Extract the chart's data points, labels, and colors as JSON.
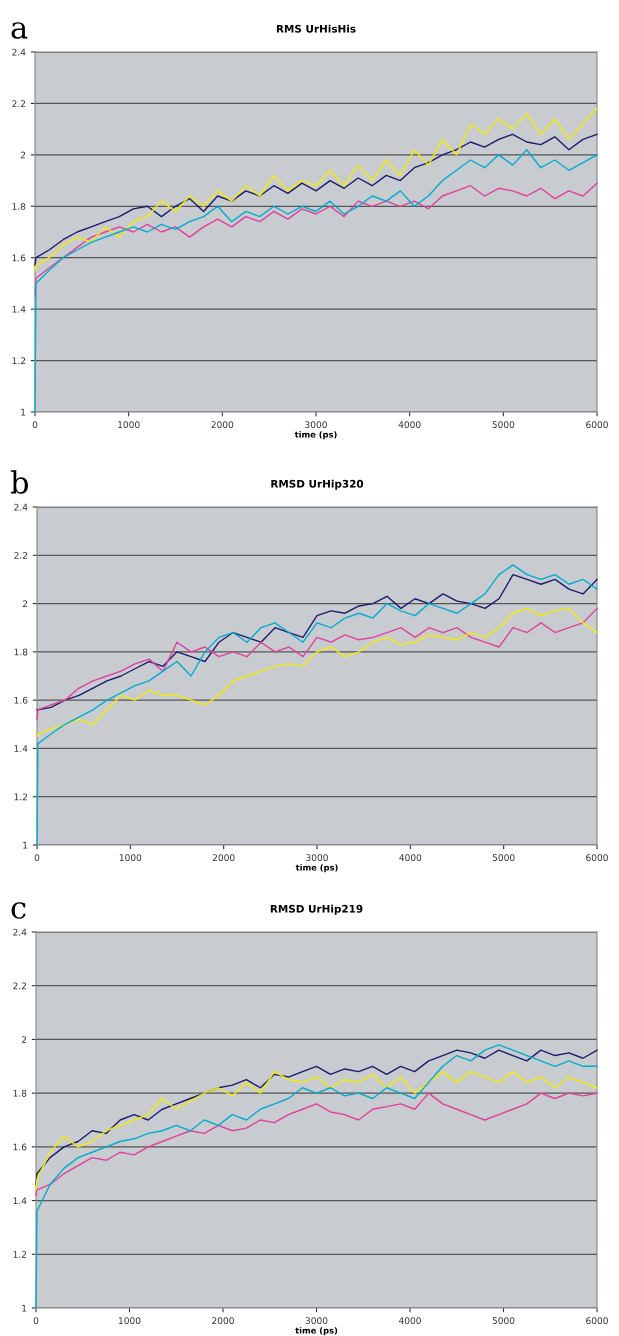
{
  "chart_data": [
    {
      "type": "line",
      "title": "RMS UrHisHis",
      "xlabel": "time (ps)",
      "annotations": [
        "a"
      ],
      "grid": "y",
      "xlim": [
        0,
        6000
      ],
      "xticks": [
        0,
        1000,
        2000,
        3000,
        4000,
        5000,
        6000
      ],
      "ylim": [
        1,
        2.4
      ],
      "yticks": [
        1,
        1.2,
        1.4,
        1.6,
        1.8,
        2,
        2.2,
        2.4
      ],
      "x": [
        0,
        10,
        150,
        300,
        450,
        600,
        750,
        900,
        1050,
        1200,
        1350,
        1500,
        1650,
        1800,
        1950,
        2100,
        2250,
        2400,
        2550,
        2700,
        2850,
        3000,
        3150,
        3300,
        3450,
        3600,
        3750,
        3900,
        4050,
        4200,
        4350,
        4500,
        4650,
        4800,
        4950,
        5100,
        5250,
        5400,
        5550,
        5700,
        5850,
        6000
      ],
      "series": [
        {
          "color": "#1c1c6c",
          "values": [
            1.57,
            1.6,
            1.63,
            1.67,
            1.7,
            1.72,
            1.74,
            1.76,
            1.79,
            1.8,
            1.76,
            1.8,
            1.83,
            1.78,
            1.84,
            1.82,
            1.86,
            1.84,
            1.88,
            1.85,
            1.89,
            1.86,
            1.9,
            1.87,
            1.91,
            1.88,
            1.92,
            1.9,
            1.95,
            1.97,
            2.0,
            2.02,
            2.05,
            2.03,
            2.06,
            2.08,
            2.05,
            2.04,
            2.07,
            2.02,
            2.06,
            2.08
          ]
        },
        {
          "color": "#e0409c",
          "values": [
            1.45,
            1.52,
            1.56,
            1.6,
            1.64,
            1.68,
            1.7,
            1.72,
            1.7,
            1.73,
            1.7,
            1.72,
            1.68,
            1.72,
            1.75,
            1.72,
            1.76,
            1.74,
            1.78,
            1.75,
            1.79,
            1.77,
            1.8,
            1.76,
            1.82,
            1.8,
            1.82,
            1.8,
            1.82,
            1.79,
            1.84,
            1.86,
            1.88,
            1.84,
            1.87,
            1.86,
            1.84,
            1.87,
            1.83,
            1.86,
            1.84,
            1.89
          ]
        },
        {
          "color": "#f2ec00",
          "values": [
            1.55,
            1.57,
            1.6,
            1.65,
            1.68,
            1.66,
            1.72,
            1.68,
            1.74,
            1.76,
            1.82,
            1.78,
            1.84,
            1.8,
            1.86,
            1.82,
            1.88,
            1.84,
            1.92,
            1.86,
            1.9,
            1.88,
            1.94,
            1.88,
            1.96,
            1.9,
            1.98,
            1.92,
            2.02,
            1.96,
            2.06,
            2.0,
            2.12,
            2.08,
            2.14,
            2.1,
            2.16,
            2.08,
            2.14,
            2.06,
            2.12,
            2.18
          ]
        },
        {
          "color": "#00acd0",
          "values": [
            1.0,
            1.5,
            1.55,
            1.6,
            1.63,
            1.66,
            1.68,
            1.7,
            1.72,
            1.7,
            1.73,
            1.71,
            1.74,
            1.76,
            1.8,
            1.74,
            1.78,
            1.76,
            1.8,
            1.77,
            1.8,
            1.78,
            1.82,
            1.77,
            1.8,
            1.84,
            1.82,
            1.86,
            1.8,
            1.84,
            1.9,
            1.94,
            1.98,
            1.95,
            2.0,
            1.96,
            2.02,
            1.95,
            1.98,
            1.94,
            1.97,
            2.0
          ]
        }
      ]
    },
    {
      "type": "line",
      "title": "RMSD UrHip320",
      "xlabel": "time (ps)",
      "annotations": [
        "b"
      ],
      "grid": "y",
      "xlim": [
        0,
        6000
      ],
      "xticks": [
        0,
        1000,
        2000,
        3000,
        4000,
        5000,
        6000
      ],
      "ylim": [
        1,
        2.4
      ],
      "yticks": [
        1,
        1.2,
        1.4,
        1.6,
        1.8,
        2,
        2.2,
        2.4
      ],
      "x": [
        0,
        10,
        150,
        300,
        450,
        600,
        750,
        900,
        1050,
        1200,
        1350,
        1500,
        1650,
        1800,
        1950,
        2100,
        2250,
        2400,
        2550,
        2700,
        2850,
        3000,
        3150,
        3300,
        3450,
        3600,
        3750,
        3900,
        4050,
        4200,
        4350,
        4500,
        4650,
        4800,
        4950,
        5100,
        5250,
        5400,
        5550,
        5700,
        5850,
        6000
      ],
      "series": [
        {
          "color": "#1c1c6c",
          "values": [
            1.56,
            1.56,
            1.57,
            1.6,
            1.62,
            1.65,
            1.68,
            1.7,
            1.73,
            1.76,
            1.74,
            1.8,
            1.78,
            1.76,
            1.84,
            1.88,
            1.86,
            1.84,
            1.9,
            1.88,
            1.86,
            1.95,
            1.97,
            1.96,
            1.99,
            2.0,
            2.03,
            1.98,
            2.02,
            2.0,
            2.04,
            2.01,
            2.0,
            1.98,
            2.02,
            2.12,
            2.1,
            2.08,
            2.1,
            2.06,
            2.04,
            2.1
          ]
        },
        {
          "color": "#e0409c",
          "values": [
            1.52,
            1.56,
            1.58,
            1.6,
            1.65,
            1.68,
            1.7,
            1.72,
            1.75,
            1.77,
            1.72,
            1.84,
            1.8,
            1.82,
            1.78,
            1.8,
            1.78,
            1.84,
            1.8,
            1.82,
            1.78,
            1.86,
            1.84,
            1.87,
            1.85,
            1.86,
            1.88,
            1.9,
            1.86,
            1.9,
            1.88,
            1.9,
            1.86,
            1.84,
            1.82,
            1.9,
            1.88,
            1.92,
            1.88,
            1.9,
            1.92,
            1.98
          ]
        },
        {
          "color": "#f2ec00",
          "values": [
            1.45,
            1.46,
            1.48,
            1.5,
            1.52,
            1.5,
            1.56,
            1.62,
            1.6,
            1.64,
            1.62,
            1.62,
            1.6,
            1.58,
            1.62,
            1.68,
            1.7,
            1.72,
            1.74,
            1.75,
            1.74,
            1.8,
            1.82,
            1.78,
            1.8,
            1.84,
            1.86,
            1.83,
            1.84,
            1.87,
            1.86,
            1.85,
            1.88,
            1.86,
            1.9,
            1.96,
            1.98,
            1.95,
            1.97,
            1.98,
            1.92,
            1.88
          ]
        },
        {
          "color": "#00acd0",
          "values": [
            1.0,
            1.42,
            1.46,
            1.5,
            1.53,
            1.56,
            1.6,
            1.63,
            1.66,
            1.68,
            1.72,
            1.76,
            1.7,
            1.8,
            1.86,
            1.88,
            1.84,
            1.9,
            1.92,
            1.88,
            1.84,
            1.92,
            1.9,
            1.94,
            1.96,
            1.94,
            2.0,
            1.97,
            1.95,
            2.0,
            1.98,
            1.96,
            2.0,
            2.04,
            2.12,
            2.16,
            2.12,
            2.1,
            2.12,
            2.08,
            2.1,
            2.06
          ]
        }
      ]
    },
    {
      "type": "line",
      "title": "RMSD UrHip219",
      "xlabel": "time (ps)",
      "annotations": [
        "c"
      ],
      "grid": "y",
      "xlim": [
        0,
        6000
      ],
      "xticks": [
        0,
        1000,
        2000,
        3000,
        4000,
        5000,
        6000
      ],
      "ylim": [
        1,
        2.4
      ],
      "yticks": [
        1,
        1.2,
        1.4,
        1.6,
        1.8,
        2,
        2.2,
        2.4
      ],
      "x": [
        0,
        10,
        150,
        300,
        450,
        600,
        750,
        900,
        1050,
        1200,
        1350,
        1500,
        1650,
        1800,
        1950,
        2100,
        2250,
        2400,
        2550,
        2700,
        2850,
        3000,
        3150,
        3300,
        3450,
        3600,
        3750,
        3900,
        4050,
        4200,
        4350,
        4500,
        4650,
        4800,
        4950,
        5100,
        5250,
        5400,
        5550,
        5700,
        5850,
        6000
      ],
      "series": [
        {
          "color": "#1c1c6c",
          "values": [
            1.46,
            1.5,
            1.56,
            1.6,
            1.62,
            1.66,
            1.65,
            1.7,
            1.72,
            1.7,
            1.74,
            1.76,
            1.78,
            1.8,
            1.82,
            1.83,
            1.85,
            1.82,
            1.87,
            1.86,
            1.88,
            1.9,
            1.87,
            1.89,
            1.88,
            1.9,
            1.87,
            1.9,
            1.88,
            1.92,
            1.94,
            1.96,
            1.95,
            1.93,
            1.96,
            1.94,
            1.92,
            1.96,
            1.94,
            1.95,
            1.93,
            1.96
          ]
        },
        {
          "color": "#e0409c",
          "values": [
            1.42,
            1.44,
            1.46,
            1.5,
            1.53,
            1.56,
            1.55,
            1.58,
            1.57,
            1.6,
            1.62,
            1.64,
            1.66,
            1.65,
            1.68,
            1.66,
            1.67,
            1.7,
            1.69,
            1.72,
            1.74,
            1.76,
            1.73,
            1.72,
            1.7,
            1.74,
            1.75,
            1.76,
            1.74,
            1.8,
            1.76,
            1.74,
            1.72,
            1.7,
            1.72,
            1.74,
            1.76,
            1.8,
            1.78,
            1.8,
            1.79,
            1.8
          ]
        },
        {
          "color": "#f2ec00",
          "values": [
            1.44,
            1.48,
            1.58,
            1.64,
            1.6,
            1.62,
            1.66,
            1.68,
            1.7,
            1.72,
            1.78,
            1.74,
            1.77,
            1.8,
            1.82,
            1.79,
            1.84,
            1.8,
            1.88,
            1.85,
            1.84,
            1.86,
            1.82,
            1.85,
            1.84,
            1.87,
            1.82,
            1.86,
            1.8,
            1.84,
            1.88,
            1.84,
            1.88,
            1.86,
            1.84,
            1.88,
            1.84,
            1.86,
            1.82,
            1.86,
            1.84,
            1.82
          ]
        },
        {
          "color": "#00acd0",
          "values": [
            1.0,
            1.36,
            1.46,
            1.52,
            1.56,
            1.58,
            1.6,
            1.62,
            1.63,
            1.65,
            1.66,
            1.68,
            1.66,
            1.7,
            1.68,
            1.72,
            1.7,
            1.74,
            1.76,
            1.78,
            1.82,
            1.8,
            1.82,
            1.79,
            1.8,
            1.78,
            1.82,
            1.8,
            1.78,
            1.84,
            1.9,
            1.94,
            1.92,
            1.96,
            1.98,
            1.96,
            1.94,
            1.92,
            1.9,
            1.92,
            1.9,
            1.9
          ]
        }
      ]
    }
  ]
}
